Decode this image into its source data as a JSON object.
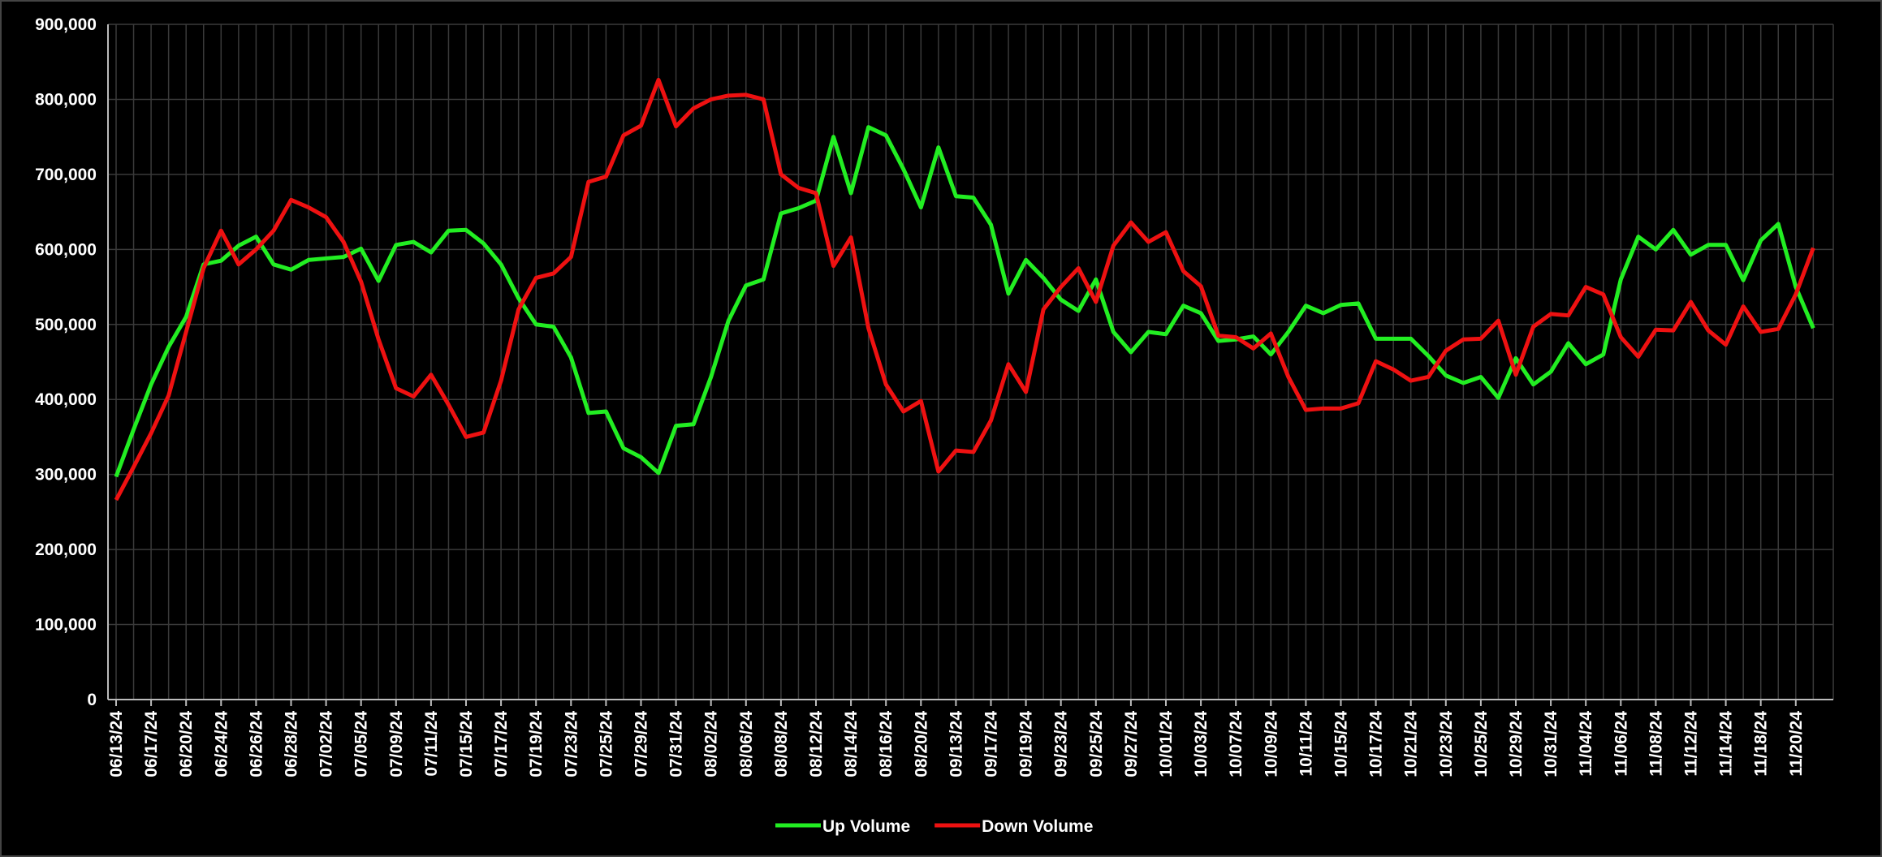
{
  "chart_data": {
    "type": "line",
    "categories": [
      "06/13/24",
      null,
      "06/17/24",
      null,
      "06/20/24",
      null,
      "06/24/24",
      null,
      "06/26/24",
      null,
      "06/28/24",
      null,
      "07/02/24",
      null,
      "07/05/24",
      null,
      "07/09/24",
      null,
      "07/11/24",
      null,
      "07/15/24",
      null,
      "07/17/24",
      null,
      "07/19/24",
      null,
      "07/23/24",
      null,
      "07/25/24",
      null,
      "07/29/24",
      null,
      "07/31/24",
      null,
      "08/02/24",
      null,
      "08/06/24",
      null,
      "08/08/24",
      null,
      "08/12/24",
      null,
      "08/14/24",
      null,
      "08/16/24",
      null,
      "08/20/24",
      null,
      "09/13/24",
      null,
      "09/17/24",
      null,
      "09/19/24",
      null,
      "09/23/24",
      null,
      "09/25/24",
      null,
      "09/27/24",
      null,
      "10/01/24",
      null,
      "10/03/24",
      null,
      "10/07/24",
      null,
      "10/09/24",
      null,
      "10/11/24",
      null,
      "10/15/24",
      null,
      "10/17/24",
      null,
      "10/21/24",
      null,
      "10/23/24",
      null,
      "10/25/24",
      null,
      "10/29/24",
      null,
      "10/31/24",
      null,
      "11/04/24",
      null,
      "11/06/24",
      null,
      "11/08/24",
      null,
      "11/12/24",
      null,
      "11/14/24",
      null,
      "11/18/24",
      null,
      "11/20/24",
      null
    ],
    "series": [
      {
        "name": "Up Volume",
        "color": "#22ee22",
        "values": [
          297000,
          360000,
          420000,
          470000,
          510000,
          580000,
          585000,
          605000,
          617000,
          580000,
          573000,
          586000,
          588000,
          590000,
          601000,
          558000,
          606000,
          610000,
          596000,
          625000,
          626000,
          608000,
          580000,
          535000,
          500000,
          497000,
          456000,
          382000,
          384000,
          335000,
          323000,
          302000,
          365000,
          367000,
          430000,
          505000,
          552000,
          560000,
          648000,
          655000,
          665000,
          750000,
          675000,
          763000,
          752000,
          707000,
          656000,
          736000,
          671000,
          669000,
          633000,
          541000,
          586000,
          562000,
          533000,
          518000,
          560000,
          490000,
          463000,
          490000,
          487000,
          525000,
          515000,
          478000,
          480000,
          484000,
          460000,
          490000,
          525000,
          515000,
          526000,
          528000,
          481000,
          481000,
          481000,
          458000,
          432000,
          422000,
          430000,
          402000,
          455000,
          420000,
          437000,
          475000,
          447000,
          460000,
          560000,
          617000,
          600000,
          626000,
          593000,
          606000,
          606000,
          559000,
          612000,
          634000,
          550000,
          495000
        ]
      },
      {
        "name": "Down Volume",
        "color": "#ee1111",
        "values": [
          266000,
          310000,
          355000,
          405000,
          490000,
          575000,
          625000,
          580000,
          600000,
          625000,
          666000,
          656000,
          643000,
          610000,
          557000,
          480000,
          415000,
          404000,
          433000,
          393000,
          350000,
          356000,
          425000,
          520000,
          562000,
          568000,
          590000,
          690000,
          697000,
          752000,
          765000,
          826000,
          764000,
          788000,
          800000,
          805000,
          806000,
          800000,
          700000,
          682000,
          675000,
          578000,
          616000,
          495000,
          420000,
          384000,
          398000,
          304000,
          332000,
          330000,
          372000,
          447000,
          410000,
          520000,
          550000,
          575000,
          530000,
          605000,
          636000,
          610000,
          623000,
          571000,
          551000,
          485000,
          483000,
          468000,
          488000,
          430000,
          386000,
          388000,
          388000,
          395000,
          451000,
          440000,
          425000,
          430000,
          465000,
          480000,
          481000,
          505000,
          433000,
          497000,
          514000,
          512000,
          550000,
          540000,
          483000,
          457000,
          493000,
          492000,
          530000,
          492000,
          473000,
          524000,
          490000,
          494000,
          540000,
          602000
        ]
      }
    ],
    "ylim": [
      0,
      900000
    ],
    "yticks": [
      0,
      {
        "value": 100000,
        "label": "100,000"
      },
      {
        "value": 200000,
        "label": "200,000"
      },
      {
        "value": 300000,
        "label": "300,000"
      },
      {
        "value": 400000,
        "label": "400,000"
      },
      {
        "value": 500000,
        "label": "500,000"
      },
      {
        "value": 600000,
        "label": "600,000"
      },
      {
        "value": 700000,
        "label": "700,000"
      },
      {
        "value": 800000,
        "label": "800,000"
      },
      {
        "value": 900000,
        "label": "900,000"
      }
    ],
    "grid": true,
    "legend": "bottom"
  }
}
